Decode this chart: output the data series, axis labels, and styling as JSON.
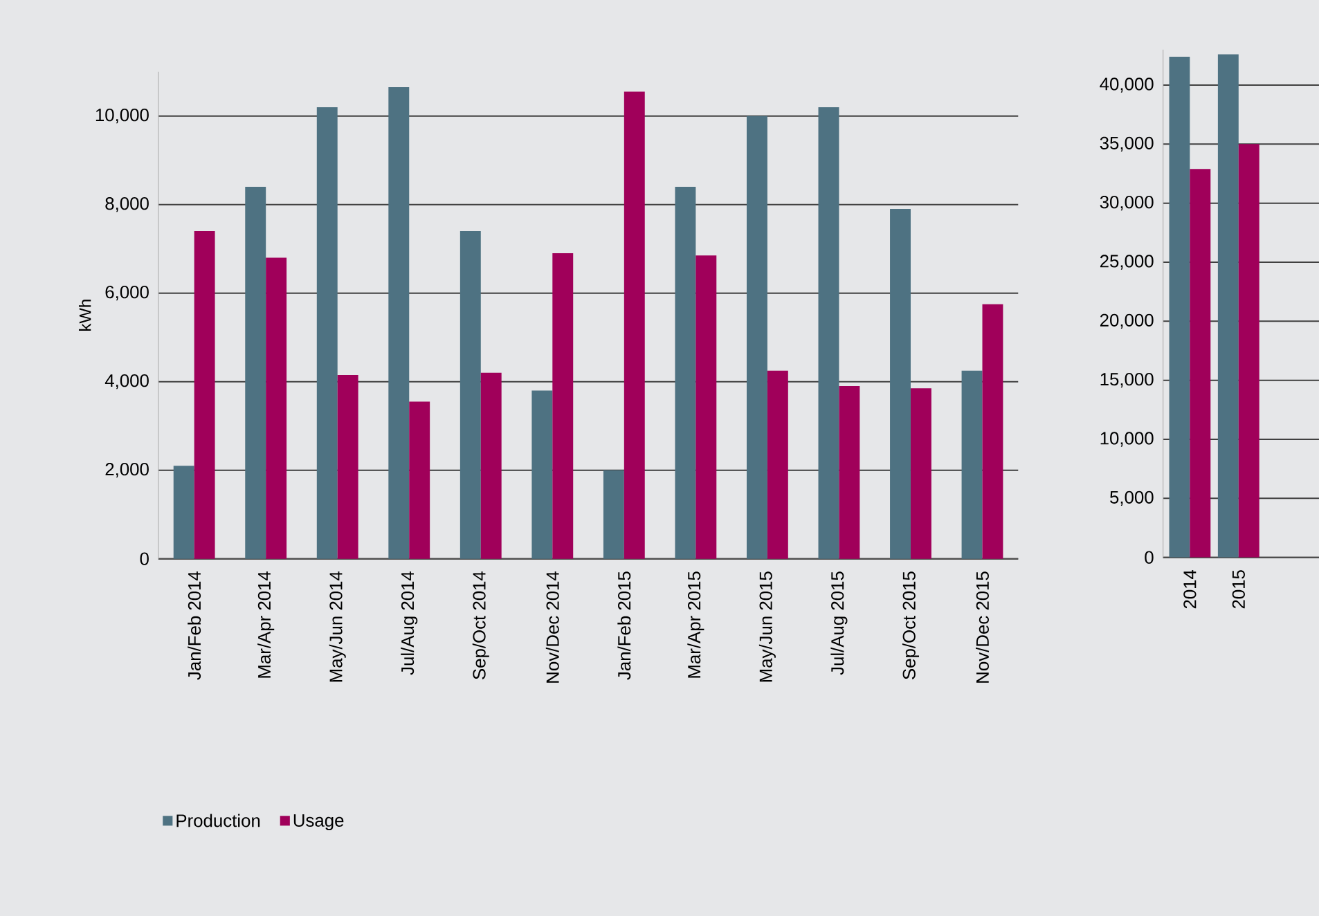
{
  "chart_data": [
    {
      "type": "bar",
      "ylabel": "kWh",
      "categories": [
        "Jan/Feb 2014",
        "Mar/Apr 2014",
        "May/Jun 2014",
        "Jul/Aug 2014",
        "Sep/Oct 2014",
        "Nov/Dec 2014",
        "Jan/Feb 2015",
        "Mar/Apr 2015",
        "May/Jun 2015",
        "Jul/Aug 2015",
        "Sep/Oct 2015",
        "Nov/Dec 2015"
      ],
      "series": [
        {
          "name": "Production",
          "color": "#4e7282",
          "values": [
            2100,
            8400,
            10200,
            10650,
            7400,
            3800,
            2000,
            8400,
            10000,
            10200,
            7900,
            4250
          ]
        },
        {
          "name": "Usage",
          "color": "#a0005a",
          "values": [
            7400,
            6800,
            4150,
            3550,
            4200,
            6900,
            10550,
            6850,
            4250,
            3900,
            3850,
            5750
          ]
        }
      ],
      "ylim": [
        0,
        11000
      ],
      "yticks": [
        0,
        {
          "value": 2000,
          "label": "2,000"
        },
        {
          "value": 4000,
          "label": "4,000"
        },
        {
          "value": 6000,
          "label": "6,000"
        },
        {
          "value": 8000,
          "label": "8,000"
        },
        {
          "value": 10000,
          "label": "10,000"
        }
      ],
      "grid": "y",
      "legend": "bottom"
    },
    {
      "type": "bar",
      "categories": [
        "2014",
        "2015"
      ],
      "series": [
        {
          "color": "#4e7282",
          "values": [
            42400,
            42600
          ]
        },
        {
          "color": "#a0005a",
          "values": [
            32900,
            35000
          ]
        }
      ],
      "ylim": [
        0,
        43000
      ],
      "yticks": [
        0,
        {
          "value": 5000,
          "label": "5,000"
        },
        {
          "value": 10000,
          "label": "10,000"
        },
        {
          "value": 15000,
          "label": "15,000"
        },
        {
          "value": 20000,
          "label": "20,000"
        },
        {
          "value": 25000,
          "label": "25,000"
        },
        {
          "value": 30000,
          "label": "30,000"
        },
        {
          "value": 35000,
          "label": "35,000"
        },
        {
          "value": 40000,
          "label": "40,000"
        }
      ],
      "grid": "y"
    }
  ]
}
